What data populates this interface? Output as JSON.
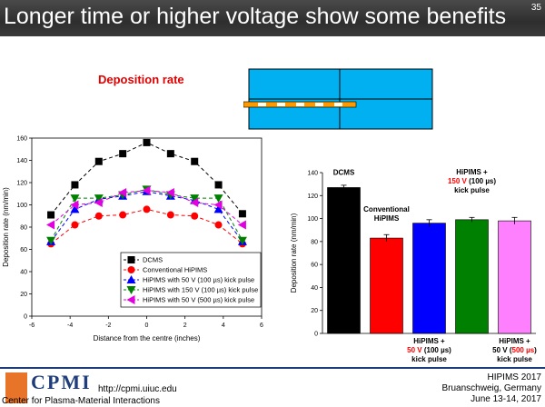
{
  "slide": {
    "title": "Longer time or higher voltage show some benefits",
    "page_number": "35",
    "deposition_heading": "Deposition rate"
  },
  "footer": {
    "logo_text": "CPMI",
    "center_name": "Center for Plasma-Material Interactions",
    "url": "http://cpmi.uiuc.edu",
    "conference_name": "HIPIMS 2017",
    "conference_location": "Bruanschweig, Germany",
    "conference_dates": "June 13-14, 2017"
  },
  "colors": {
    "title_bg": "#333333",
    "heading_red": "#e00000",
    "substrate_blue": "#00b0f0",
    "target_orange": "#ff9900",
    "cpmi_blue": "#1f3d7a"
  },
  "chart_data": [
    {
      "type": "line",
      "xlabel": "Distance from the centre (inches)",
      "ylabel": "Deposition rate (nm/min)",
      "xlim": [
        -6,
        6
      ],
      "ylim": [
        0,
        160
      ],
      "xticks": [
        "-6",
        "-4",
        "-2",
        "0",
        "2",
        "4",
        "6"
      ],
      "yticks": [
        "0",
        "20",
        "40",
        "60",
        "80",
        "100",
        "120",
        "140",
        "160"
      ],
      "legend_position": "bottom-right",
      "x": [
        -5,
        -3.75,
        -2.5,
        -1.25,
        0,
        1.25,
        2.5,
        3.75,
        5
      ],
      "series": [
        {
          "name": "DCMS",
          "color": "#000000",
          "marker": "square",
          "values": [
            91,
            118,
            139,
            146,
            156,
            146,
            139,
            118,
            92
          ]
        },
        {
          "name": "Conventional HiPIMS",
          "color": "#ff0000",
          "marker": "circle",
          "values": [
            65,
            82,
            90,
            91,
            96,
            91,
            90,
            82,
            65
          ]
        },
        {
          "name": "HiPIMS with   50 V (100 µs) kick pulse",
          "color": "#0000ff",
          "marker": "triangle-up",
          "values": [
            67,
            96,
            105,
            108,
            112,
            108,
            104,
            96,
            67
          ]
        },
        {
          "name": "HiPIMS with 150 V (100 µs) kick pulse",
          "color": "#008000",
          "marker": "triangle-down",
          "values": [
            68,
            106,
            106,
            109,
            114,
            109,
            106,
            106,
            68
          ]
        },
        {
          "name": "HiPIMS with   50 V (500 µs) kick pulse",
          "color": "#e000e0",
          "marker": "triangle-left",
          "values": [
            82,
            100,
            102,
            111,
            113,
            111,
            102,
            100,
            82
          ]
        }
      ]
    },
    {
      "type": "bar",
      "ylabel": "Deposition rate (nm/min)",
      "ylim": [
        0,
        140
      ],
      "yticks": [
        "0",
        "20",
        "40",
        "60",
        "80",
        "100",
        "120",
        "140"
      ],
      "categories": [
        "DCMS",
        "Conventional HiPIMS",
        "HiPIMS + 50 V (100 µs) kick pulse",
        "HiPIMS + 150 V (100 µs) kick pulse",
        "HiPIMS + 50 V (500 µs) kick pulse"
      ],
      "values": [
        127,
        83,
        96,
        99,
        98
      ],
      "errors": [
        2,
        3,
        3,
        2,
        3
      ],
      "colors": [
        "#000000",
        "#ff0000",
        "#0000ff",
        "#008000",
        "#ff80ff"
      ],
      "label_lines": [
        [
          {
            "t": "DCMS",
            "c": "#000000"
          }
        ],
        [
          {
            "t": "Conventional",
            "c": "#000000"
          },
          {
            "t": "HiPIMS",
            "c": "#000000"
          }
        ],
        [
          {
            "t": "HiPIMS +",
            "c": "#000000"
          },
          {
            "t": "50 V",
            "c": "#ff0000",
            "s": " (100 µs)"
          },
          {
            "t": "kick pulse",
            "c": "#000000"
          }
        ],
        [
          {
            "t": "HiPIMS +",
            "c": "#000000"
          },
          {
            "t": "150 V",
            "c": "#ff0000",
            "s": " (100 µs)"
          },
          {
            "t": "kick pulse",
            "c": "#000000"
          }
        ],
        [
          {
            "t": "HiPIMS +",
            "c": "#000000"
          },
          {
            "t": "50 V (",
            "c": "#000000",
            "r": "500 µs",
            "s": ")"
          },
          {
            "t": "kick pulse",
            "c": "#000000"
          }
        ]
      ]
    }
  ]
}
